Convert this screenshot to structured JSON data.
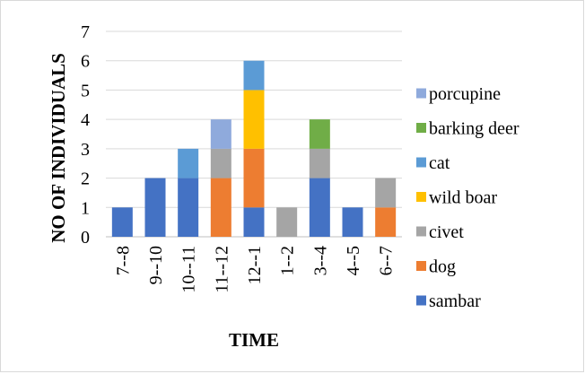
{
  "chart_data": {
    "type": "bar",
    "stacked": true,
    "title": "",
    "xlabel": "TIME",
    "ylabel": "NO OF INDIVIDUALS",
    "ylim": [
      0,
      7
    ],
    "yticks": [
      0,
      1,
      2,
      3,
      4,
      5,
      6,
      7
    ],
    "grid": "horizontal",
    "legend_position": "right",
    "categories": [
      "7--8",
      "9--10",
      "10--11",
      "11--12",
      "12--1",
      "1--2",
      "3--4",
      "4--5",
      "6--7"
    ],
    "series": [
      {
        "name": "sambar",
        "color": "#4472c4",
        "values": [
          1,
          2,
          2,
          0,
          1,
          0,
          2,
          1,
          0
        ]
      },
      {
        "name": "dog",
        "color": "#ed7d31",
        "values": [
          0,
          0,
          0,
          2,
          2,
          0,
          0,
          0,
          1
        ]
      },
      {
        "name": "civet",
        "color": "#a5a5a5",
        "values": [
          0,
          0,
          0,
          1,
          0,
          1,
          1,
          0,
          1
        ]
      },
      {
        "name": "wild boar",
        "color": "#ffc000",
        "values": [
          0,
          0,
          0,
          0,
          2,
          0,
          0,
          0,
          0
        ]
      },
      {
        "name": "cat",
        "color": "#5b9bd5",
        "values": [
          0,
          0,
          1,
          0,
          1,
          0,
          0,
          0,
          0
        ]
      },
      {
        "name": "barking deer",
        "color": "#70ad47",
        "values": [
          0,
          0,
          0,
          0,
          0,
          0,
          1,
          0,
          0
        ]
      },
      {
        "name": "porcupine",
        "color": "#8faadc",
        "values": [
          0,
          0,
          0,
          1,
          0,
          0,
          0,
          0,
          0
        ]
      }
    ],
    "legend_order": [
      "porcupine",
      "barking deer",
      "cat",
      "wild boar",
      "civet",
      "dog",
      "sambar"
    ]
  }
}
